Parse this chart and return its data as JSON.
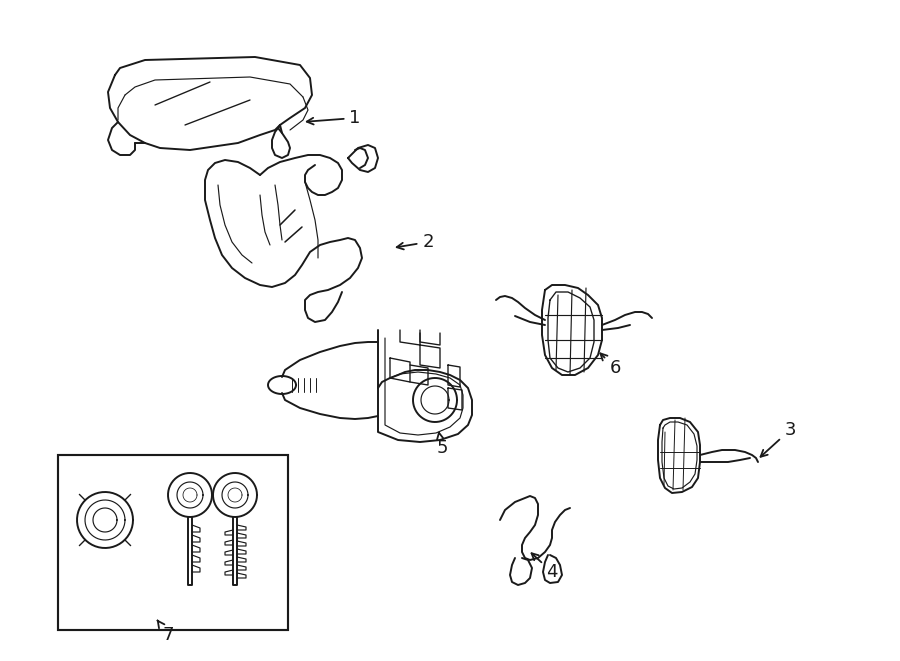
{
  "background_color": "#ffffff",
  "line_color": "#1a1a1a",
  "line_width": 1.4,
  "fig_width": 9.0,
  "fig_height": 6.61,
  "dpi": 100
}
